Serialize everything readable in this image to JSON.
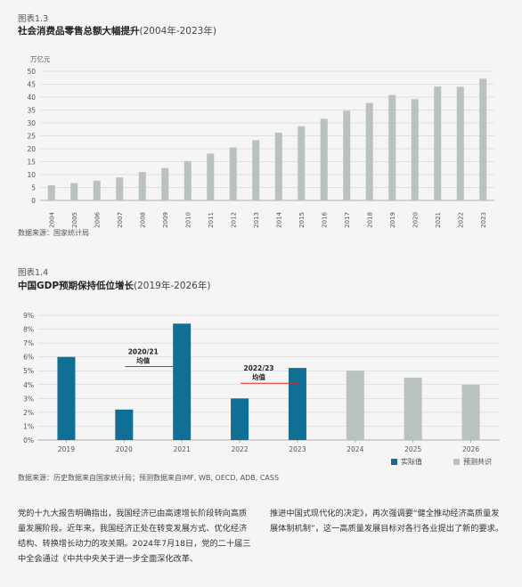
{
  "figures": [
    {
      "label": "图表1.3",
      "title_main": "社会消费品零售总额大幅提升",
      "title_range": "(2004年-2023年)",
      "source": "数据来源：国家统计局"
    },
    {
      "label": "图表1.4",
      "title_main": "中国GDP预期保持低位增长",
      "title_range": "(2019年-2026年)",
      "source": "数据来源：历史数据来自国家统计局；预测数据来自IMF, WB, OECD, ADB, CASS",
      "legend": {
        "actual": "实际值",
        "forecast": "预测共识"
      },
      "annotations": [
        {
          "line1": "2020/21",
          "line2": "均值"
        },
        {
          "line1": "2022/23",
          "line2": "均值"
        }
      ]
    }
  ],
  "body": {
    "col1": "党的十九大报告明确指出，我国经济已由高速增长阶段转向高质量发展阶段。近年来，我国经济正处在转变发展方式、优化经济结构、转换增长动力的攻关期。2024年7月18日，党的二十届三中全会通过《中共中央关于进一步全面深化改革、",
    "col2": "推进中国式现代化的决定》，再次强调要“健全推动经济高质量发展体制机制”，这一高质量发展目标对各行各业提出了新的要求。"
  },
  "colors": {
    "gray_bar": "#b9c1c1",
    "blue_bar": "#0f6f94",
    "red_line": "#d62b2b",
    "grid": "#d6d6d6"
  },
  "chart_data": [
    {
      "type": "bar",
      "title": "社会消费品零售总额大幅提升(2004年-2023年)",
      "ylabel": "万亿元",
      "categories": [
        "2004",
        "2005",
        "2006",
        "2007",
        "2008",
        "2009",
        "2010",
        "2011",
        "2012",
        "2013",
        "2014",
        "2015",
        "2016",
        "2017",
        "2018",
        "2019",
        "2020",
        "2021",
        "2022",
        "2023"
      ],
      "values": [
        5.9,
        6.7,
        7.6,
        8.9,
        11.0,
        12.5,
        15.2,
        18.1,
        20.5,
        23.3,
        26.2,
        28.7,
        31.6,
        34.7,
        37.7,
        40.8,
        39.2,
        44.1,
        44.0,
        47.1
      ],
      "ylim": [
        0,
        50
      ],
      "yticks": [
        0,
        5,
        10,
        15,
        20,
        25,
        30,
        35,
        40,
        45,
        50
      ],
      "grid": true
    },
    {
      "type": "bar",
      "title": "中国GDP预期保持低位增长(2019年-2026年)",
      "categories": [
        "2019",
        "2020",
        "2021",
        "2022",
        "2023",
        "2024",
        "2025",
        "2026"
      ],
      "series": [
        {
          "name": "实际值",
          "values": [
            6.0,
            2.2,
            8.4,
            3.0,
            5.2,
            null,
            null,
            null
          ]
        },
        {
          "name": "预测共识",
          "values": [
            null,
            null,
            null,
            null,
            null,
            5.0,
            4.5,
            4.0
          ]
        }
      ],
      "ylim": [
        0,
        9
      ],
      "yticks": [
        "0%",
        "1%",
        "2%",
        "3%",
        "4%",
        "5%",
        "6%",
        "7%",
        "8%",
        "9%"
      ],
      "averages": [
        {
          "label": "2020/21 均值",
          "value": 5.3
        },
        {
          "label": "2022/23 均值",
          "value": 4.1
        }
      ],
      "grid": true,
      "legend": "bottom-right"
    }
  ]
}
